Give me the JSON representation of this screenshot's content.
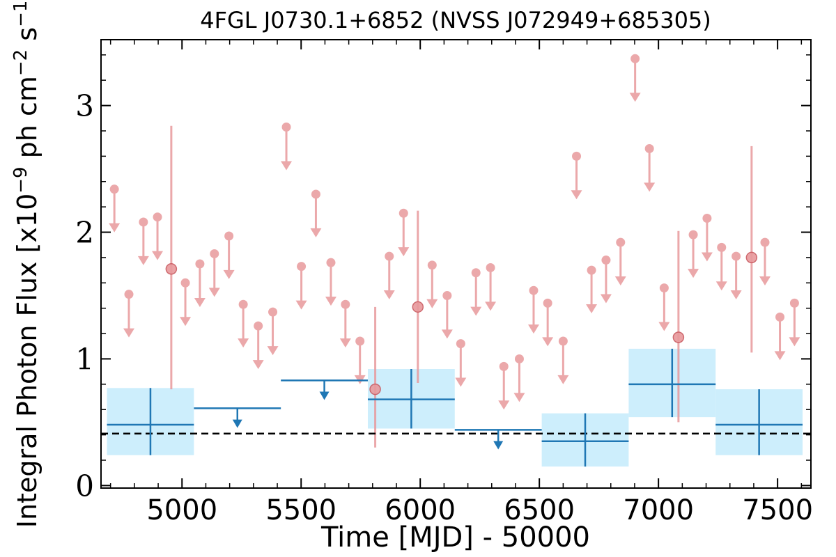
{
  "chart_data": {
    "type": "scatter",
    "title": "4FGL J0730.1+6852 (NVSS J072949+685305)",
    "xlabel": "Time [MJD] - 50000",
    "ylabel": "Integral Photon Flux [x10^-9 ph cm^-2 s^-1]",
    "ylabel_parts": {
      "prefix": "Integral Photon Flux [x10",
      "exp1": "−9",
      "mid": " ph cm",
      "exp2": "−2",
      "mid2": " s",
      "exp3": "−1",
      "suffix": "]"
    },
    "xlim": [
      4660,
      7640
    ],
    "ylim": [
      -0.02,
      3.52
    ],
    "x_ticks": [
      "5000",
      "5500",
      "6000",
      "6500",
      "7000",
      "7500"
    ],
    "y_ticks": [
      "0",
      "1",
      "2",
      "3"
    ],
    "reference_level": 0.41,
    "series": [
      {
        "kind": "fine_upper_limits",
        "color": "#e8999c",
        "points": [
          [
            4716,
            2.34
          ],
          [
            4777,
            1.51
          ],
          [
            4838,
            2.08
          ],
          [
            4897,
            2.12
          ],
          [
            5014,
            1.6
          ],
          [
            5075,
            1.75
          ],
          [
            5136,
            1.83
          ],
          [
            5197,
            1.97
          ],
          [
            5257,
            1.43
          ],
          [
            5320,
            1.26
          ],
          [
            5381,
            1.37
          ],
          [
            5438,
            2.83
          ],
          [
            5501,
            1.73
          ],
          [
            5562,
            2.3
          ],
          [
            5625,
            1.76
          ],
          [
            5686,
            1.43
          ],
          [
            5747,
            1.14
          ],
          [
            5870,
            1.81
          ],
          [
            5930,
            2.15
          ],
          [
            6050,
            1.74
          ],
          [
            6113,
            1.5
          ],
          [
            6170,
            1.12
          ],
          [
            6234,
            1.68
          ],
          [
            6295,
            1.72
          ],
          [
            6351,
            0.94
          ],
          [
            6416,
            1.0
          ],
          [
            6476,
            1.54
          ],
          [
            6535,
            1.44
          ],
          [
            6600,
            1.14
          ],
          [
            6656,
            2.6
          ],
          [
            6719,
            1.7
          ],
          [
            6780,
            1.78
          ],
          [
            6841,
            1.92
          ],
          [
            6902,
            3.37
          ],
          [
            6962,
            2.66
          ],
          [
            7024,
            1.56
          ],
          [
            7146,
            1.98
          ],
          [
            7204,
            2.11
          ],
          [
            7265,
            1.88
          ],
          [
            7326,
            1.81
          ],
          [
            7447,
            1.92
          ],
          [
            7510,
            1.33
          ],
          [
            7571,
            1.44
          ]
        ]
      },
      {
        "kind": "fine_detections",
        "color": "#e8999c",
        "points": [
          [
            4955,
            1.71,
            0.76,
            2.84
          ],
          [
            5811,
            0.76,
            0.3,
            1.41
          ],
          [
            5990,
            1.41,
            0.81,
            2.17
          ],
          [
            7084,
            1.17,
            0.5,
            2.01
          ],
          [
            7391,
            1.8,
            1.05,
            2.68
          ]
        ]
      },
      {
        "kind": "coarse_detections",
        "color": "#1f77b4",
        "band_color": "#cdeefc",
        "bins": [
          [
            4685,
            5050,
            0.48,
            0.24,
            0.77
          ],
          [
            5780,
            6145,
            0.68,
            0.45,
            0.92
          ],
          [
            6510,
            6875,
            0.35,
            0.15,
            0.57
          ],
          [
            6875,
            7240,
            0.8,
            0.54,
            1.08
          ],
          [
            7240,
            7605,
            0.48,
            0.24,
            0.76
          ]
        ]
      },
      {
        "kind": "coarse_upper_limits",
        "color": "#1f77b4",
        "bins": [
          [
            5050,
            5415,
            0.61
          ],
          [
            5415,
            5780,
            0.83
          ],
          [
            6145,
            6510,
            0.44
          ]
        ]
      }
    ]
  }
}
